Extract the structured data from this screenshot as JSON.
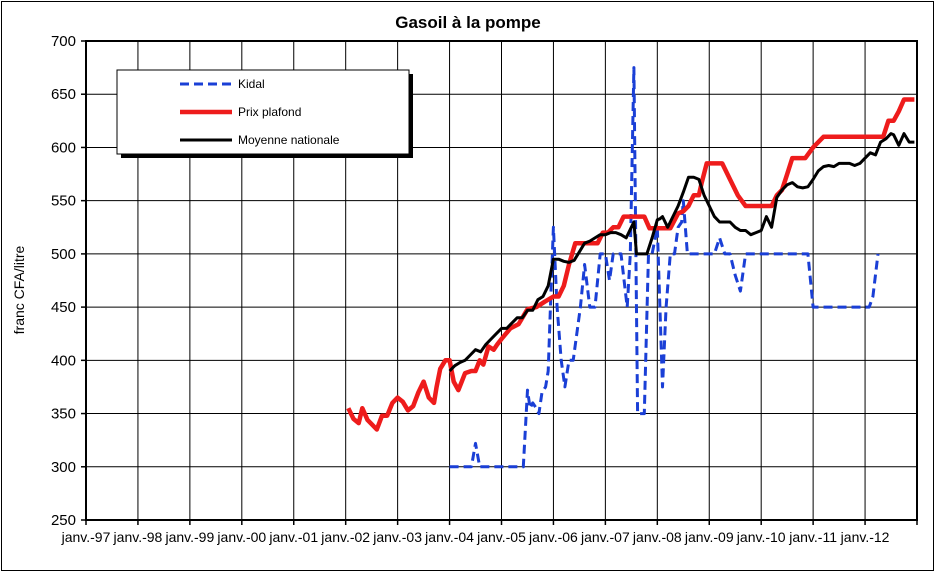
{
  "chart_data": {
    "type": "line",
    "title": "Gasoil à la pompe",
    "xlabel": "",
    "ylabel": "franc CFA/litre",
    "ylim": [
      250,
      700
    ],
    "yticks": [
      250,
      300,
      350,
      400,
      450,
      500,
      550,
      600,
      650,
      700
    ],
    "x_tick_labels": [
      "janv.-97",
      "janv.-98",
      "janv.-99",
      "janv.-00",
      "janv.-01",
      "janv.-02",
      "janv.-03",
      "janv.-04",
      "janv.-05",
      "janv.-06",
      "janv.-07",
      "janv.-08",
      "janv.-09",
      "janv.-10",
      "janv.-11",
      "janv.-12"
    ],
    "x_unit": "year",
    "xlim": [
      1997.0,
      2013.0
    ],
    "grid": true,
    "legend_position": "top-left",
    "series": [
      {
        "name": "Kidal",
        "color": "#1a3fd6",
        "dash": "dashed",
        "x": [
          2004.0,
          2004.3,
          2004.42,
          2004.5,
          2004.58,
          2004.7,
          2005.0,
          2005.42,
          2005.5,
          2005.55,
          2005.6,
          2005.67,
          2005.72,
          2005.78,
          2005.85,
          2005.9,
          2005.95,
          2006.0,
          2006.07,
          2006.15,
          2006.22,
          2006.3,
          2006.38,
          2006.45,
          2006.52,
          2006.6,
          2006.7,
          2006.8,
          2006.9,
          2007.0,
          2007.08,
          2007.15,
          2007.22,
          2007.3,
          2007.42,
          2007.48,
          2007.55,
          2007.62,
          2007.7,
          2007.75,
          2007.83,
          2007.9,
          2008.0,
          2008.05,
          2008.1,
          2008.17,
          2008.25,
          2008.33,
          2008.4,
          2008.47,
          2008.5,
          2008.58,
          2008.67,
          2008.75,
          2008.8,
          2008.9,
          2009.0,
          2009.1,
          2009.2,
          2009.3,
          2009.35,
          2009.4,
          2009.5,
          2009.6,
          2009.7,
          2009.8,
          2009.9,
          2010.0,
          2010.4,
          2010.8,
          2010.9,
          2011.0,
          2011.2,
          2011.5,
          2011.9,
          2012.0,
          2012.08,
          2012.15,
          2012.25
        ],
        "y": [
          300,
          300,
          300,
          322,
          300,
          300,
          300,
          300,
          372,
          355,
          360,
          355,
          350,
          370,
          375,
          390,
          460,
          525,
          450,
          400,
          375,
          400,
          400,
          425,
          450,
          490,
          450,
          450,
          500,
          500,
          475,
          500,
          500,
          500,
          450,
          500,
          675,
          350,
          350,
          350,
          500,
          500,
          525,
          450,
          375,
          450,
          500,
          500,
          525,
          530,
          550,
          500,
          500,
          500,
          500,
          500,
          500,
          500,
          515,
          500,
          500,
          500,
          480,
          465,
          500,
          500,
          500,
          500,
          500,
          500,
          500,
          450,
          450,
          450,
          450,
          450,
          450,
          460,
          500
        ]
      },
      {
        "name": "Prix plafond",
        "color": "#ee1c1c",
        "dash": "solid",
        "x": [
          2002.05,
          2002.15,
          2002.25,
          2002.32,
          2002.42,
          2002.5,
          2002.6,
          2002.7,
          2002.8,
          2002.9,
          2003.0,
          2003.1,
          2003.2,
          2003.3,
          2003.4,
          2003.5,
          2003.6,
          2003.7,
          2003.75,
          2003.82,
          2003.92,
          2004.0,
          2004.08,
          2004.17,
          2004.3,
          2004.42,
          2004.5,
          2004.58,
          2004.65,
          2004.75,
          2004.85,
          2004.92,
          2005.0,
          2005.17,
          2005.33,
          2005.5,
          2005.67,
          2005.83,
          2006.0,
          2006.1,
          2006.2,
          2006.3,
          2006.42,
          2006.55,
          2006.65,
          2006.75,
          2006.85,
          2006.95,
          2007.05,
          2007.15,
          2007.25,
          2007.35,
          2007.45,
          2007.55,
          2007.65,
          2007.75,
          2007.85,
          2008.0,
          2008.1,
          2008.25,
          2008.4,
          2008.5,
          2008.6,
          2008.7,
          2008.8,
          2008.85,
          2008.95,
          2009.05,
          2009.15,
          2009.25,
          2009.4,
          2009.55,
          2009.7,
          2009.8,
          2009.9,
          2010.0,
          2010.1,
          2010.2,
          2010.3,
          2010.4,
          2010.5,
          2010.6,
          2010.75,
          2010.85,
          2011.0,
          2011.2,
          2011.4,
          2011.6,
          2011.8,
          2011.95,
          2012.05,
          2012.15,
          2012.25,
          2012.35,
          2012.45,
          2012.55,
          2012.65,
          2012.75,
          2012.85,
          2012.95
        ],
        "y": [
          355,
          345,
          341,
          355,
          344,
          340,
          335,
          348,
          348,
          360,
          365,
          361,
          353,
          357,
          370,
          380,
          365,
          360,
          375,
          392,
          400,
          400,
          380,
          372,
          388,
          390,
          390,
          400,
          396,
          413,
          410,
          415,
          420,
          430,
          434,
          448,
          450,
          455,
          460,
          460,
          470,
          490,
          510,
          510,
          510,
          510,
          510,
          520,
          520,
          525,
          525,
          535,
          535,
          535,
          535,
          535,
          524,
          524,
          524,
          524,
          538,
          540,
          545,
          555,
          555,
          566,
          585,
          585,
          585,
          585,
          570,
          555,
          545,
          545,
          545,
          545,
          545,
          545,
          555,
          560,
          575,
          590,
          590,
          590,
          600,
          610,
          610,
          610,
          610,
          610,
          610,
          610,
          610,
          610,
          625,
          625,
          634,
          645,
          645,
          645
        ]
      },
      {
        "name": "Moyenne nationale",
        "color": "#000000",
        "dash": "solid",
        "x": [
          2004.0,
          2004.1,
          2004.2,
          2004.3,
          2004.4,
          2004.5,
          2004.6,
          2004.7,
          2004.8,
          2004.9,
          2005.0,
          2005.1,
          2005.2,
          2005.3,
          2005.4,
          2005.5,
          2005.6,
          2005.7,
          2005.8,
          2005.9,
          2006.0,
          2006.1,
          2006.2,
          2006.3,
          2006.4,
          2006.5,
          2006.6,
          2006.7,
          2006.8,
          2006.9,
          2007.0,
          2007.1,
          2007.2,
          2007.3,
          2007.4,
          2007.5,
          2007.55,
          2007.6,
          2007.7,
          2007.8,
          2007.9,
          2008.0,
          2008.05,
          2008.1,
          2008.2,
          2008.3,
          2008.4,
          2008.5,
          2008.6,
          2008.7,
          2008.8,
          2008.9,
          2009.0,
          2009.1,
          2009.2,
          2009.3,
          2009.4,
          2009.5,
          2009.6,
          2009.7,
          2009.8,
          2009.9,
          2010.0,
          2010.1,
          2010.2,
          2010.3,
          2010.4,
          2010.5,
          2010.6,
          2010.7,
          2010.8,
          2010.9,
          2011.0,
          2011.1,
          2011.2,
          2011.3,
          2011.4,
          2011.5,
          2011.6,
          2011.7,
          2011.8,
          2011.9,
          2012.0,
          2012.1,
          2012.2,
          2012.3,
          2012.4,
          2012.5,
          2012.55,
          2012.65,
          2012.75,
          2012.85,
          2012.95
        ],
        "y": [
          390,
          395,
          398,
          400,
          405,
          410,
          408,
          415,
          420,
          425,
          430,
          430,
          435,
          440,
          440,
          447,
          447,
          457,
          460,
          470,
          495,
          495,
          493,
          492,
          494,
          502,
          510,
          512,
          515,
          518,
          518,
          520,
          520,
          518,
          515,
          525,
          530,
          500,
          500,
          500,
          515,
          532,
          533,
          535,
          525,
          535,
          545,
          558,
          572,
          572,
          570,
          555,
          545,
          535,
          530,
          530,
          530,
          525,
          522,
          522,
          518,
          520,
          522,
          535,
          525,
          553,
          560,
          565,
          567,
          563,
          562,
          563,
          570,
          578,
          582,
          583,
          582,
          585,
          585,
          585,
          583,
          585,
          590,
          595,
          593,
          605,
          608,
          613,
          612,
          602,
          613,
          605,
          605
        ]
      }
    ]
  }
}
